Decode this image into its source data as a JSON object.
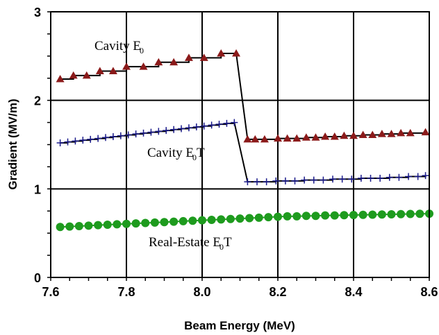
{
  "chart_data": {
    "type": "line",
    "title": "",
    "xlabel": "Beam Energy (MeV)",
    "ylabel": "Gradient (MV/m)",
    "xlim": [
      7.6,
      8.6
    ],
    "ylim": [
      0,
      3
    ],
    "x_ticks": [
      "7.6",
      "7.8",
      "8.0",
      "8.2",
      "8.4",
      "8.6"
    ],
    "y_ticks": [
      "0",
      "1",
      "2",
      "3"
    ],
    "grid": true,
    "annotations": [
      {
        "main": "Cavity E",
        "sub": "0",
        "rest": "",
        "series": "Cavity E0"
      },
      {
        "main": "Cavity E",
        "sub": "0",
        "rest": "T",
        "series": "Cavity E0T"
      },
      {
        "main": "Real-Estate E",
        "sub": "0",
        "rest": "T",
        "series": "Real-Estate E0T"
      }
    ],
    "series": [
      {
        "marker": "triangle",
        "color": "#8b1a1a",
        "line_color": "#000000",
        "line": "step",
        "x": [
          7.625,
          7.66,
          7.695,
          7.73,
          7.765,
          7.8,
          7.845,
          7.885,
          7.925,
          7.965,
          8.005,
          8.05,
          8.09,
          8.12,
          8.14,
          8.165,
          8.2,
          8.225,
          8.25,
          8.275,
          8.3,
          8.325,
          8.35,
          8.375,
          8.4,
          8.425,
          8.45,
          8.475,
          8.5,
          8.525,
          8.55,
          8.59
        ],
        "y": [
          2.24,
          2.28,
          2.28,
          2.33,
          2.33,
          2.38,
          2.38,
          2.43,
          2.43,
          2.48,
          2.48,
          2.53,
          2.53,
          1.56,
          1.56,
          1.56,
          1.57,
          1.57,
          1.57,
          1.58,
          1.58,
          1.59,
          1.59,
          1.6,
          1.6,
          1.61,
          1.61,
          1.62,
          1.62,
          1.63,
          1.63,
          1.64
        ]
      },
      {
        "marker": "plus",
        "color": "#1a1a8b",
        "line_color": "#000000",
        "line": "step",
        "x": [
          7.625,
          7.645,
          7.665,
          7.685,
          7.705,
          7.725,
          7.745,
          7.765,
          7.785,
          7.805,
          7.825,
          7.845,
          7.865,
          7.885,
          7.905,
          7.925,
          7.945,
          7.965,
          7.985,
          8.005,
          8.025,
          8.045,
          8.065,
          8.085,
          8.12,
          8.145,
          8.17,
          8.195,
          8.22,
          8.245,
          8.27,
          8.295,
          8.32,
          8.345,
          8.37,
          8.395,
          8.42,
          8.445,
          8.47,
          8.495,
          8.52,
          8.545,
          8.57,
          8.59
        ],
        "y": [
          1.52,
          1.53,
          1.54,
          1.55,
          1.56,
          1.57,
          1.58,
          1.59,
          1.6,
          1.61,
          1.62,
          1.63,
          1.64,
          1.65,
          1.66,
          1.67,
          1.68,
          1.69,
          1.7,
          1.71,
          1.72,
          1.73,
          1.74,
          1.75,
          1.08,
          1.08,
          1.08,
          1.09,
          1.09,
          1.09,
          1.1,
          1.1,
          1.1,
          1.11,
          1.11,
          1.11,
          1.12,
          1.12,
          1.12,
          1.13,
          1.13,
          1.14,
          1.14,
          1.15
        ]
      },
      {
        "marker": "circle",
        "color": "#1e9b1e",
        "line_color": "#1e9b1e",
        "line": "straight",
        "x": [
          7.625,
          7.65,
          7.675,
          7.7,
          7.725,
          7.75,
          7.775,
          7.8,
          7.825,
          7.85,
          7.875,
          7.9,
          7.925,
          7.95,
          7.975,
          8.0,
          8.025,
          8.05,
          8.075,
          8.1,
          8.125,
          8.15,
          8.175,
          8.2,
          8.225,
          8.25,
          8.275,
          8.3,
          8.325,
          8.35,
          8.375,
          8.4,
          8.425,
          8.45,
          8.475,
          8.5,
          8.525,
          8.55,
          8.575,
          8.6
        ],
        "y": [
          0.57,
          0.575,
          0.58,
          0.585,
          0.59,
          0.595,
          0.6,
          0.605,
          0.61,
          0.615,
          0.62,
          0.625,
          0.63,
          0.635,
          0.64,
          0.645,
          0.65,
          0.655,
          0.66,
          0.665,
          0.67,
          0.675,
          0.68,
          0.685,
          0.69,
          0.69,
          0.695,
          0.695,
          0.7,
          0.7,
          0.703,
          0.705,
          0.707,
          0.709,
          0.711,
          0.713,
          0.715,
          0.717,
          0.719,
          0.72
        ]
      }
    ]
  }
}
